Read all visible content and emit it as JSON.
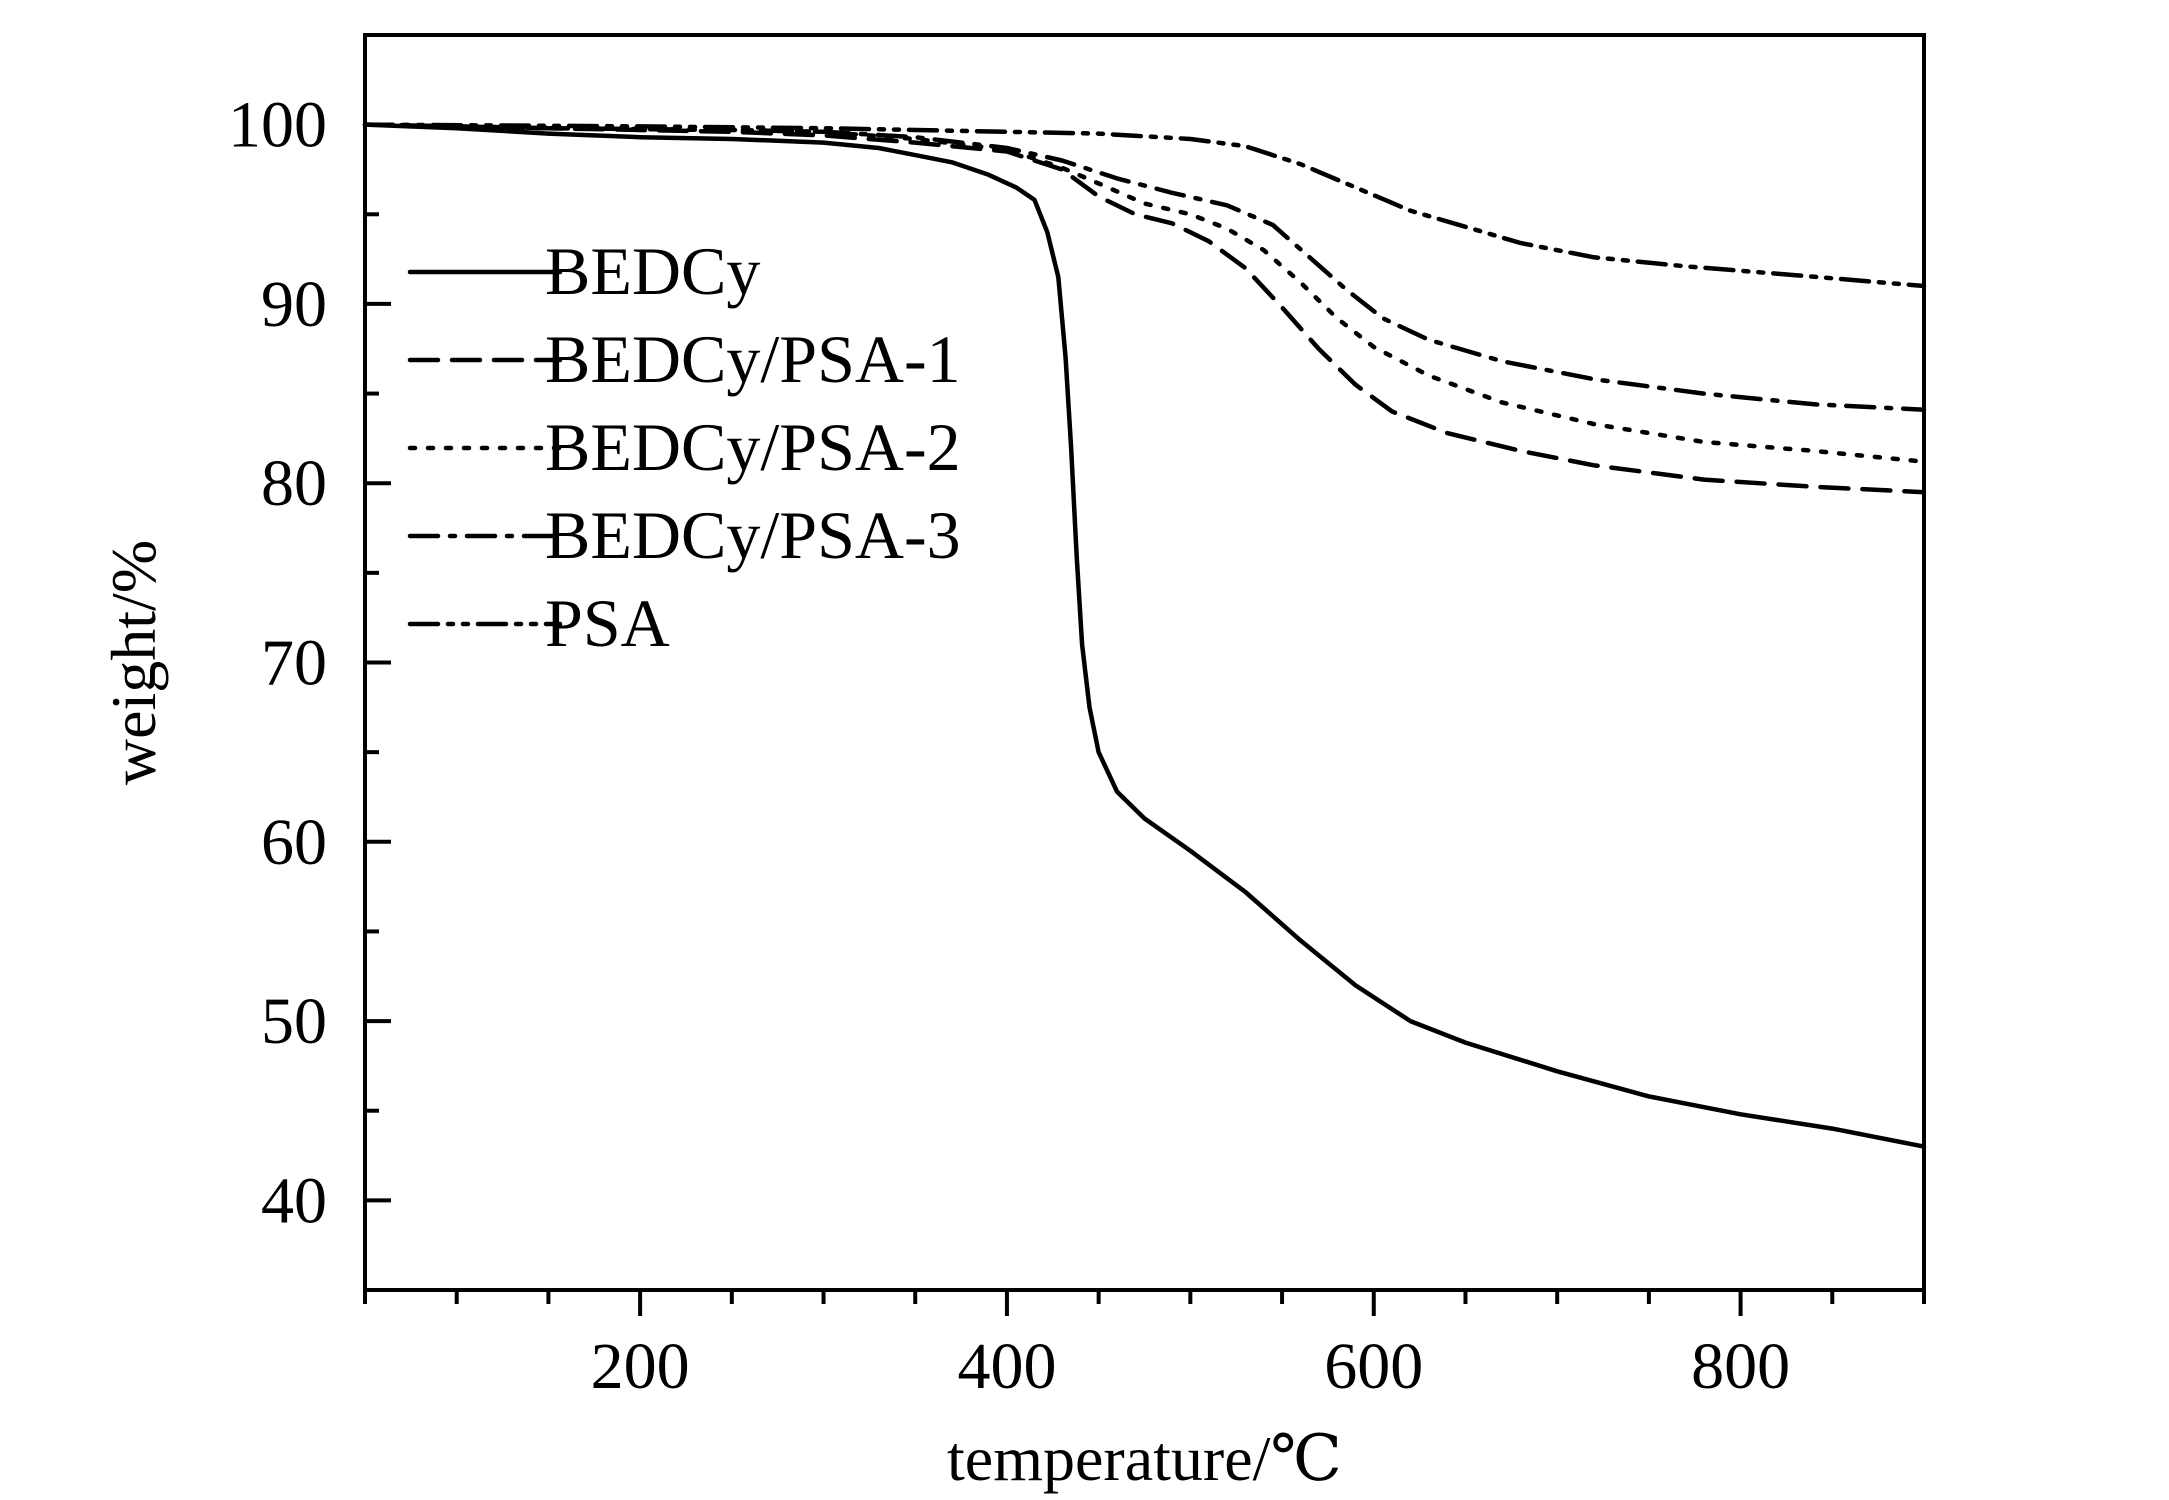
{
  "chart_data": {
    "type": "line",
    "title": "",
    "xlabel": "temperature/℃",
    "ylabel": "weight/%",
    "xlim": [
      50,
      900
    ],
    "ylim": [
      35,
      105
    ],
    "x_ticks": [
      200,
      400,
      600,
      800
    ],
    "y_ticks": [
      40,
      50,
      60,
      70,
      80,
      90,
      100
    ],
    "x_minor_step": 50,
    "y_minor_step": 5,
    "grid": false,
    "legend_position": "top-left",
    "colors": {
      "axis": "#000000",
      "line": "#000000"
    },
    "series": [
      {
        "name": "BEDCy",
        "dash": "solid",
        "points": [
          [
            50,
            100
          ],
          [
            100,
            99.8
          ],
          [
            150,
            99.5
          ],
          [
            200,
            99.3
          ],
          [
            250,
            99.2
          ],
          [
            300,
            99
          ],
          [
            330,
            98.7
          ],
          [
            350,
            98.3
          ],
          [
            370,
            97.9
          ],
          [
            390,
            97.2
          ],
          [
            405,
            96.5
          ],
          [
            415,
            95.8
          ],
          [
            422,
            94
          ],
          [
            428,
            91.5
          ],
          [
            432,
            87
          ],
          [
            435,
            82
          ],
          [
            438,
            76
          ],
          [
            441,
            71
          ],
          [
            445,
            67.5
          ],
          [
            450,
            65
          ],
          [
            460,
            62.8
          ],
          [
            475,
            61.3
          ],
          [
            500,
            59.5
          ],
          [
            530,
            57.2
          ],
          [
            560,
            54.5
          ],
          [
            590,
            52
          ],
          [
            620,
            50
          ],
          [
            650,
            48.8
          ],
          [
            700,
            47.2
          ],
          [
            750,
            45.8
          ],
          [
            800,
            44.8
          ],
          [
            850,
            44
          ],
          [
            900,
            43
          ]
        ]
      },
      {
        "name": "BEDCy/PSA-1",
        "dash": "dashed",
        "points": [
          [
            50,
            100
          ],
          [
            150,
            99.8
          ],
          [
            250,
            99.6
          ],
          [
            300,
            99.4
          ],
          [
            350,
            99
          ],
          [
            400,
            98.5
          ],
          [
            430,
            97.5
          ],
          [
            450,
            96
          ],
          [
            470,
            95
          ],
          [
            490,
            94.5
          ],
          [
            510,
            93.5
          ],
          [
            530,
            92
          ],
          [
            550,
            89.8
          ],
          [
            570,
            87.5
          ],
          [
            590,
            85.5
          ],
          [
            610,
            84
          ],
          [
            640,
            82.8
          ],
          [
            680,
            81.8
          ],
          [
            720,
            81
          ],
          [
            780,
            80.2
          ],
          [
            840,
            79.8
          ],
          [
            900,
            79.5
          ]
        ]
      },
      {
        "name": "BEDCy/PSA-2",
        "dash": "dotted",
        "points": [
          [
            50,
            100
          ],
          [
            150,
            99.8
          ],
          [
            250,
            99.7
          ],
          [
            300,
            99.6
          ],
          [
            350,
            99.2
          ],
          [
            400,
            98.6
          ],
          [
            430,
            97.6
          ],
          [
            455,
            96.5
          ],
          [
            475,
            95.6
          ],
          [
            500,
            95
          ],
          [
            520,
            94.2
          ],
          [
            540,
            93
          ],
          [
            560,
            91.2
          ],
          [
            580,
            89.2
          ],
          [
            600,
            87.6
          ],
          [
            630,
            86
          ],
          [
            670,
            84.5
          ],
          [
            720,
            83.3
          ],
          [
            780,
            82.3
          ],
          [
            840,
            81.8
          ],
          [
            900,
            81.2
          ]
        ]
      },
      {
        "name": "BEDCy/PSA-3",
        "dash": "dashdot",
        "points": [
          [
            50,
            100
          ],
          [
            150,
            99.8
          ],
          [
            250,
            99.7
          ],
          [
            300,
            99.6
          ],
          [
            350,
            99.3
          ],
          [
            400,
            98.7
          ],
          [
            430,
            98
          ],
          [
            460,
            97
          ],
          [
            490,
            96.2
          ],
          [
            520,
            95.5
          ],
          [
            545,
            94.4
          ],
          [
            565,
            92.6
          ],
          [
            585,
            90.8
          ],
          [
            605,
            89.2
          ],
          [
            630,
            88
          ],
          [
            670,
            86.8
          ],
          [
            720,
            85.8
          ],
          [
            780,
            85
          ],
          [
            840,
            84.4
          ],
          [
            900,
            84.1
          ]
        ]
      },
      {
        "name": "PSA",
        "dash": "dashdotdot",
        "points": [
          [
            50,
            100
          ],
          [
            200,
            99.9
          ],
          [
            300,
            99.8
          ],
          [
            400,
            99.6
          ],
          [
            450,
            99.5
          ],
          [
            500,
            99.2
          ],
          [
            530,
            98.8
          ],
          [
            560,
            97.8
          ],
          [
            590,
            96.5
          ],
          [
            620,
            95.2
          ],
          [
            650,
            94.3
          ],
          [
            680,
            93.4
          ],
          [
            720,
            92.6
          ],
          [
            770,
            92.1
          ],
          [
            830,
            91.6
          ],
          [
            900,
            91
          ]
        ]
      }
    ]
  }
}
